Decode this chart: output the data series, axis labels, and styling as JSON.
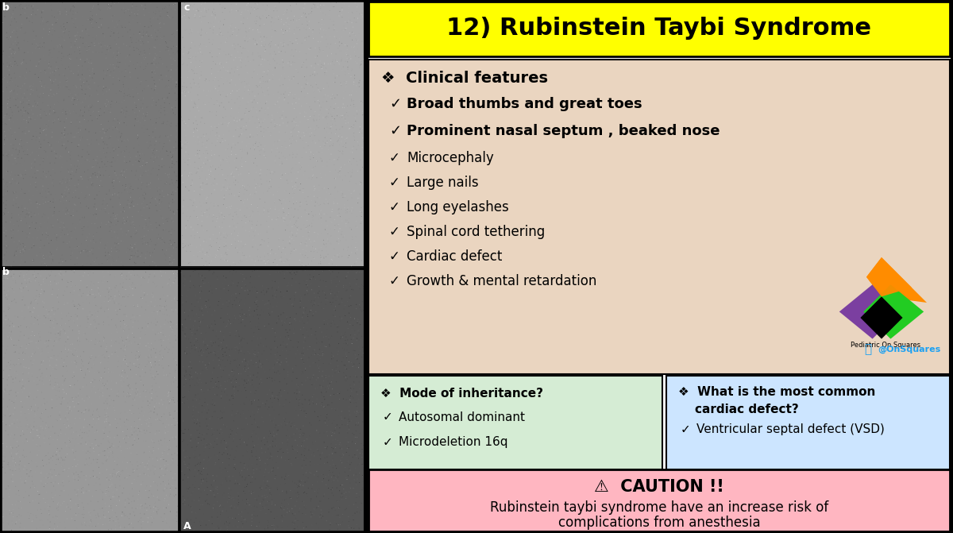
{
  "title": "12) Rubinstein Taybi Syndrome",
  "title_bg": "#ffff00",
  "title_color": "#000000",
  "main_bg": "#ead5c0",
  "clinical_header": "❖  Clinical features",
  "clinical_items_bold": [
    "Broad thumbs and great toes",
    "Prominent nasal septum , beaked nose"
  ],
  "clinical_items_normal": [
    "Microcephaly",
    "Large nails",
    "Long eyelashes",
    "Spinal cord tethering",
    "Cardiac defect",
    "Growth & mental retardation"
  ],
  "inheritance_bg": "#d5ecd4",
  "inheritance_header": "❖  Mode of inheritance?",
  "inheritance_items": [
    "Autosomal dominant",
    "Microdeletion 16q"
  ],
  "cardiac_bg": "#cce5ff",
  "cardiac_header_line1": "❖  What is the most common",
  "cardiac_header_line2": "    cardiac defect?",
  "cardiac_items": [
    "Ventricular septal defect (VSD)"
  ],
  "caution_bg": "#ffb6c1",
  "caution_title": "⚠  CAUTION !!",
  "caution_text1": "Rubinstein taybi syndrome have an increase risk of",
  "caution_text2": "complications from anesthesia",
  "logo_text1": "Pediatric On Squares",
  "logo_text2": "@OnSquares",
  "border_color": "#000000",
  "check": "✓",
  "left_panel_bg": "#1a1a1a",
  "photo_label_b_top": "b",
  "photo_label_c": "c",
  "photo_label_b_bot": "b",
  "photo_label_A": "A",
  "right_bg": "#ffffff",
  "outer_bg": "#000000"
}
